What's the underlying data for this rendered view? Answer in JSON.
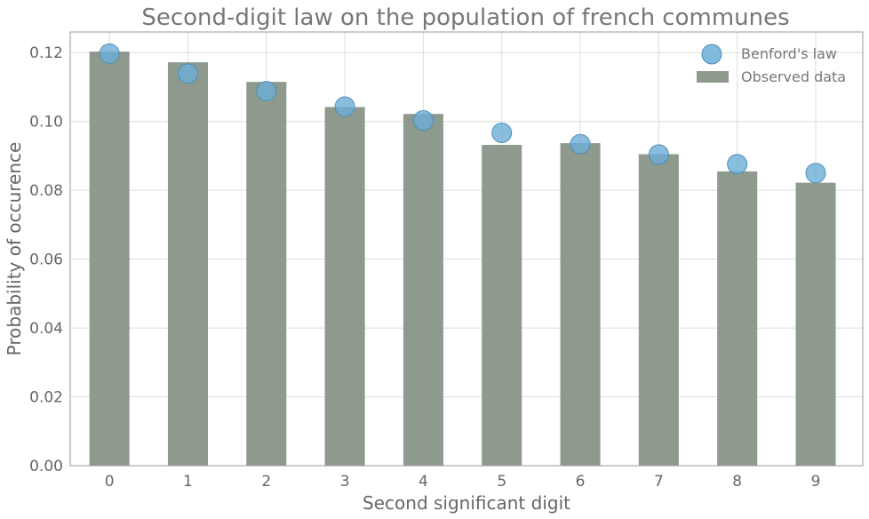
{
  "chart_data": {
    "type": "bar",
    "title": "Second-digit law on the population of french communes",
    "xlabel": "Second significant digit",
    "ylabel": "Probability of occurence",
    "categories": [
      "0",
      "1",
      "2",
      "3",
      "4",
      "5",
      "6",
      "7",
      "8",
      "9"
    ],
    "series": [
      {
        "name": "Observed data",
        "kind": "bar",
        "color": "#8e9a8d",
        "values": [
          0.1203,
          0.1172,
          0.1115,
          0.1042,
          0.1022,
          0.0932,
          0.0937,
          0.0905,
          0.0855,
          0.0822
        ]
      },
      {
        "name": "Benford's law",
        "kind": "scatter",
        "color": "#6baed6",
        "values": [
          0.1197,
          0.1139,
          0.1088,
          0.1043,
          0.1003,
          0.0967,
          0.0934,
          0.0904,
          0.0876,
          0.085
        ]
      }
    ],
    "ylim": [
      0,
      0.126
    ],
    "yticks": [
      "0.00",
      "0.02",
      "0.04",
      "0.06",
      "0.08",
      "0.10",
      "0.12"
    ],
    "grid": true,
    "legend": "top-right"
  }
}
